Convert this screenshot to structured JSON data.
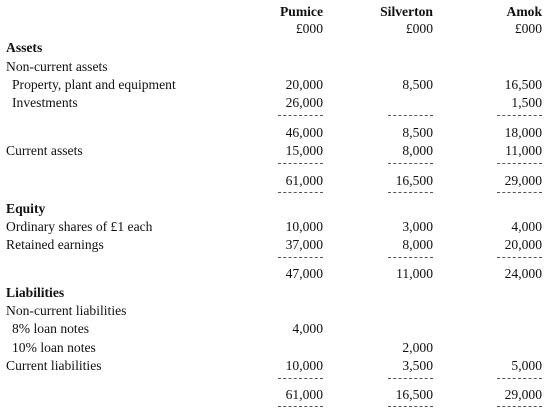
{
  "columns": [
    {
      "name": "Pumice",
      "unit": "£000"
    },
    {
      "name": "Silverton",
      "unit": "£000"
    },
    {
      "name": "Amok",
      "unit": "£000"
    }
  ],
  "assets": {
    "heading": "Assets",
    "non_current_heading": "Non-current assets",
    "ppe": {
      "label": "Property, plant and equipment",
      "values": [
        "20,000",
        "8,500",
        "16,500"
      ]
    },
    "investments": {
      "label": "Investments",
      "values": [
        "26,000",
        "",
        "1,500"
      ]
    },
    "non_current_subtotal": {
      "values": [
        "46,000",
        "8,500",
        "18,000"
      ]
    },
    "current": {
      "label": "Current assets",
      "values": [
        "15,000",
        "8,000",
        "11,000"
      ]
    },
    "total": {
      "values": [
        "61,000",
        "16,500",
        "29,000"
      ]
    }
  },
  "equity": {
    "heading": "Equity",
    "shares": {
      "label": "Ordinary shares of £1 each",
      "values": [
        "10,000",
        "3,000",
        "4,000"
      ]
    },
    "retained": {
      "label": "Retained earnings",
      "values": [
        "37,000",
        "8,000",
        "20,000"
      ]
    },
    "total": {
      "values": [
        "47,000",
        "11,000",
        "24,000"
      ]
    }
  },
  "liabilities": {
    "heading": "Liabilities",
    "non_current_heading": "Non-current liabilities",
    "loan8": {
      "label": "8% loan notes",
      "values": [
        "4,000",
        "",
        ""
      ]
    },
    "loan10": {
      "label": "10% loan notes",
      "values": [
        "",
        "2,000",
        ""
      ]
    },
    "current": {
      "label": "Current liabilities",
      "values": [
        "10,000",
        "3,500",
        "5,000"
      ]
    },
    "total": {
      "values": [
        "61,000",
        "16,500",
        "29,000"
      ]
    }
  }
}
